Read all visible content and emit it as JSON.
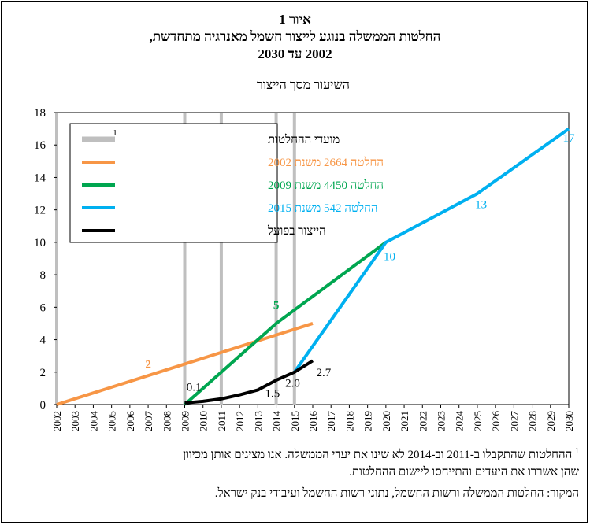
{
  "figure": {
    "label": "איור 1",
    "title_line1": "החלטות הממשלה בנוגע לייצור חשמל מאנרגיה מתחדשת,",
    "title_line2": "2002 עד 2030"
  },
  "notes": {
    "footnote_mark": "1",
    "footnote_line1": "ההחלטות שהתקבלו ב-2011 וב-2014 לא שינו את יעדי הממשלה. אנו מציגים אותן מכיוון",
    "footnote_line2": "שהן אשררו את היעדים והתייחסו ליישום ההחלטות.",
    "source": "המקור: החלטות הממשלה ורשות החשמל, נתוני רשות החשמל ועיבודי בנק ישראל."
  },
  "colors": {
    "decision_dates": "#bfbfbf",
    "decision_2002": "#f79646",
    "decision_2009": "#00a650",
    "decision_2015": "#00b0f0",
    "actual": "#000000"
  },
  "chart_data": {
    "type": "line",
    "ylabel": "השיעור מסך הייצור",
    "xlabel": "",
    "ylim": [
      0,
      18
    ],
    "yticks": [
      "0",
      "2",
      "4",
      "6",
      "8",
      "10",
      "12",
      "14",
      "16",
      "18"
    ],
    "xlim": [
      2002,
      2030
    ],
    "xticks": [
      "2002",
      "2003",
      "2004",
      "2005",
      "2006",
      "2007",
      "2008",
      "2009",
      "2010",
      "2011",
      "2012",
      "2013",
      "2014",
      "2015",
      "2016",
      "2017",
      "2018",
      "2019",
      "2020",
      "2021",
      "2022",
      "2023",
      "2024",
      "2025",
      "2026",
      "2027",
      "2028",
      "2029",
      "2030"
    ],
    "grid": false,
    "legend_position": "top-left",
    "decision_years": [
      2002,
      2009,
      2011,
      2014,
      2015
    ],
    "decision_legend": "מועדי ההחלטות",
    "decision_legend_mark": "1",
    "series": [
      {
        "name": "החלטה 2664 משנת 2002",
        "color_key": "decision_2002",
        "x": [
          2002,
          2016
        ],
        "y": [
          0,
          5
        ]
      },
      {
        "name": "החלטה 4450 משנת 2009",
        "color_key": "decision_2009",
        "x": [
          2009,
          2014,
          2020
        ],
        "y": [
          0,
          5,
          10
        ]
      },
      {
        "name": "החלטה 542 משנת 2015",
        "color_key": "decision_2015",
        "x": [
          2015,
          2020,
          2025,
          2030
        ],
        "y": [
          2,
          10,
          13,
          17
        ]
      },
      {
        "name": "הייצור בפועל",
        "color_key": "actual",
        "x": [
          2009,
          2010,
          2011,
          2012,
          2013,
          2014,
          2015,
          2016
        ],
        "y": [
          0.1,
          0.2,
          0.35,
          0.6,
          0.9,
          1.5,
          2.0,
          2.7
        ]
      }
    ],
    "data_labels": [
      {
        "text": "2",
        "x": 2007,
        "y": 2.25,
        "color_key": "decision_2002"
      },
      {
        "text": "5",
        "x": 2014,
        "y": 5.9,
        "color_key": "decision_2009"
      },
      {
        "text": "10",
        "x": 2020.2,
        "y": 8.9,
        "color_key": "decision_2015"
      },
      {
        "text": "13",
        "x": 2025.2,
        "y": 12.1,
        "color_key": "decision_2015"
      },
      {
        "text": "17",
        "x": 2030,
        "y": 16.2,
        "color_key": "decision_2015"
      },
      {
        "text": "0.1",
        "x": 2009.5,
        "y": 0.85,
        "color_key": "actual"
      },
      {
        "text": "1.5",
        "x": 2013.8,
        "y": 0.45,
        "color_key": "actual"
      },
      {
        "text": "2.0",
        "x": 2014.9,
        "y": 1.1,
        "color_key": "actual"
      },
      {
        "text": "2.7",
        "x": 2016.6,
        "y": 1.75,
        "color_key": "actual"
      }
    ]
  }
}
